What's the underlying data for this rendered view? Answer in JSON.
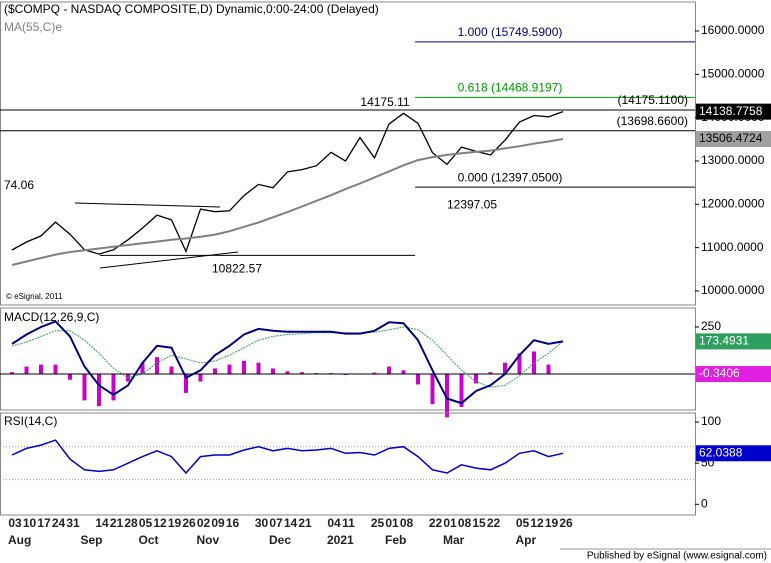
{
  "chart_data": [
    {
      "type": "line",
      "title": "($COMPQ - NASDAQ COMPOSITE,D) Dynamic,0:00-24:00 (Delayed)",
      "credit": "© eSignal, 2011",
      "categories": [
        "03",
        "10",
        "17",
        "24",
        "31",
        null,
        "14",
        "21",
        "28",
        "05",
        "12",
        "19",
        "26",
        "02",
        "09",
        "16",
        null,
        "30",
        "07",
        "14",
        "21",
        null,
        "04",
        "11",
        null,
        "25",
        "01",
        "08",
        null,
        "22",
        "01",
        "08",
        "15",
        "22",
        null,
        "05",
        "12",
        "19",
        "26"
      ],
      "month_labels": [
        "Aug",
        "Sep",
        "Oct",
        "Nov",
        "Dec",
        "2021",
        "Feb",
        "Mar",
        "Apr"
      ],
      "ylim": [
        9676,
        16669
      ],
      "yticks": [
        {
          "value": 10000,
          "label": "10000.0000"
        },
        {
          "value": 11000,
          "label": "11000.0000"
        },
        {
          "value": 12000,
          "label": "12000.0000"
        },
        {
          "value": 13000,
          "label": "13000.0000"
        },
        {
          "value": 14000,
          "label": "14000.0000"
        },
        {
          "value": 15000,
          "label": "15000.0000"
        },
        {
          "value": 16000,
          "label": "16000.0000"
        }
      ],
      "series": [
        {
          "color": "#000000",
          "values": [
            10946,
            11130,
            11270,
            11590,
            11310,
            10950,
            10850,
            10950,
            11180,
            11450,
            11750,
            11640,
            10910,
            11890,
            11830,
            11850,
            12200,
            12460,
            12380,
            12750,
            12800,
            12890,
            13200,
            13000,
            13540,
            13070,
            13850,
            14100,
            13870,
            13190,
            12920,
            13320,
            13220,
            13140,
            13480,
            13900,
            14050,
            14020,
            14138.7758
          ]
        },
        {
          "name": "MA(55,C)e",
          "color": "#808080",
          "values": [
            10600,
            10680,
            10760,
            10840,
            10900,
            10940,
            10980,
            11020,
            11060,
            11100,
            11140,
            11180,
            11210,
            11250,
            11300,
            11380,
            11480,
            11580,
            11700,
            11820,
            11950,
            12080,
            12210,
            12350,
            12480,
            12620,
            12760,
            12900,
            13020,
            13090,
            13140,
            13180,
            13210,
            13240,
            13290,
            13340,
            13400,
            13450,
            13506.4724
          ]
        }
      ],
      "levels": [
        {
          "label": "1.000 (15749.5900)",
          "value": 15749.59,
          "color": "#000080"
        },
        {
          "label": "0.618 (14468.9197)",
          "value": 14468.9197,
          "color": "#009900"
        },
        {
          "label": "(14175.1100)",
          "value": 14175.11,
          "color": "#000000"
        },
        {
          "label": "(13698.6600)",
          "value": 13698.66,
          "color": "#000000"
        },
        {
          "label": "0.000 (12397.0500)",
          "value": 12397.05,
          "color": "#000000"
        }
      ],
      "annotations": [
        {
          "text": "14175.11",
          "value": 14175.11
        },
        {
          "text": "12397.05",
          "value": 12397.05
        },
        {
          "text": "10822.57",
          "value": 10822.57
        },
        {
          "text": "74.06"
        }
      ]
    },
    {
      "type": "macd",
      "title": "MACD(12,26,9,C)",
      "ylim": [
        -191,
        351
      ],
      "yticks": [
        250
      ],
      "series": [
        {
          "color": "#000080",
          "values": [
            160,
            210,
            250,
            280,
            200,
            40,
            -60,
            -110,
            -60,
            60,
            150,
            140,
            -20,
            20,
            100,
            150,
            210,
            240,
            230,
            225,
            225,
            225,
            225,
            215,
            215,
            230,
            275,
            270,
            180,
            20,
            -130,
            -155,
            -90,
            -60,
            0,
            100,
            180,
            160,
            173.4931
          ]
        },
        {
          "color": "#2e9e5e",
          "values": [
            150,
            170,
            200,
            230,
            230,
            180,
            110,
            30,
            -20,
            0,
            60,
            100,
            80,
            60,
            70,
            100,
            140,
            180,
            200,
            210,
            215,
            220,
            220,
            220,
            218,
            222,
            235,
            250,
            235,
            180,
            100,
            20,
            -40,
            -70,
            -60,
            -10,
            60,
            110,
            173.8337
          ]
        },
        {
          "color": "#cc00cc",
          "values": [
            10,
            40,
            50,
            50,
            -30,
            -140,
            -170,
            -140,
            -40,
            60,
            90,
            40,
            -100,
            -40,
            30,
            50,
            70,
            60,
            30,
            15,
            10,
            5,
            5,
            -5,
            -3,
            8,
            40,
            20,
            -55,
            -160,
            -230,
            -175,
            -50,
            10,
            60,
            110,
            120,
            50,
            -0.3406
          ]
        }
      ]
    },
    {
      "type": "rsi",
      "title": "RSI(14,C)",
      "ylim": [
        -13,
        111
      ],
      "yticks": [
        0,
        50,
        100
      ],
      "levels": [
        30,
        70
      ],
      "series": [
        {
          "color": "#0000cc",
          "values": [
            60,
            68,
            72,
            78,
            55,
            42,
            40,
            42,
            50,
            58,
            65,
            58,
            38,
            58,
            60,
            60,
            66,
            70,
            65,
            68,
            65,
            66,
            68,
            62,
            63,
            60,
            68,
            70,
            58,
            42,
            38,
            48,
            44,
            42,
            50,
            62,
            65,
            58,
            62.0388
          ]
        }
      ]
    }
  ],
  "footer": "Published by eSignal (www.esignal.com)"
}
